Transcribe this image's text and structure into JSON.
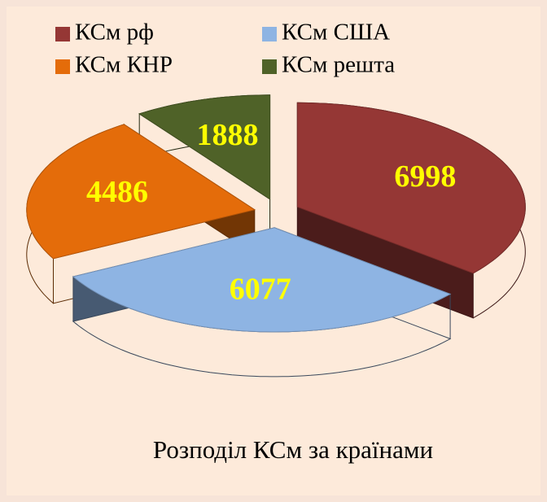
{
  "chart_data": {
    "type": "pie",
    "title": "Розподіл КСм за країнами",
    "categories": [
      "КСм рф",
      "КСм США",
      "КСм КНР",
      "КСм решта"
    ],
    "values": [
      6998,
      6077,
      4486,
      1888
    ],
    "colors": [
      "#953735",
      "#8eb4e3",
      "#e46c0a",
      "#4f6228"
    ],
    "legend": "top"
  }
}
